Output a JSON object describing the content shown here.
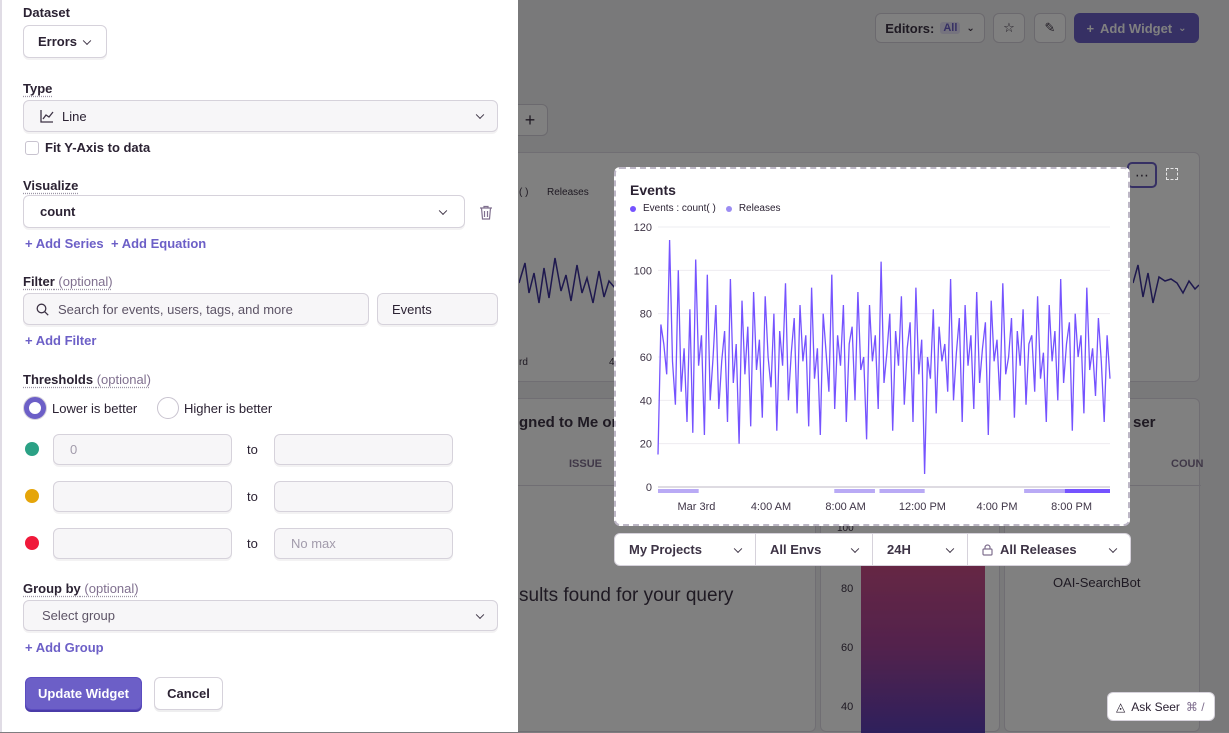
{
  "background": {
    "editors_label": "Editors:",
    "editors_value": "All",
    "add_widget_label": "Add Widget",
    "plus_label": "+",
    "legend_partial": "( )",
    "legend_releases": "Releases",
    "axis_partial_left": "rd",
    "axis_partial_4": "4",
    "assigned_title": "gned to Me or",
    "issue_col": "ISSUE",
    "no_results": "sults found for your query",
    "browser_title": "ser",
    "count_col": "COUN",
    "bot_row": "OAI-SearchBot",
    "y100": "100",
    "y80": "80",
    "y60": "60",
    "y40": "40",
    "ask_seer_label": "Ask Seer",
    "ask_seer_shortcut": "⌘ /"
  },
  "panel": {
    "dataset": {
      "label": "Dataset",
      "value": "Errors"
    },
    "type": {
      "label": "Type",
      "value": "Line"
    },
    "fit_y_axis": {
      "label": "Fit Y-Axis to data",
      "checked": false
    },
    "visualize": {
      "label": "Visualize",
      "value": "count",
      "add_series": "+ Add Series",
      "add_equation": "+ Add Equation"
    },
    "filter": {
      "label": "Filter",
      "optional": "(optional)",
      "placeholder": "Search for events, users, tags, and more",
      "events_value": "Events",
      "add_filter": "+ Add Filter"
    },
    "thresholds": {
      "label": "Thresholds",
      "optional": "(optional)",
      "lower": "Lower is better",
      "higher": "Higher is better",
      "selected": "lower",
      "rows": [
        {
          "color": "#2ba185",
          "min_placeholder": "0",
          "max_placeholder": ""
        },
        {
          "color": "#e5a50a",
          "min_placeholder": "",
          "max_placeholder": ""
        },
        {
          "color": "#f0193a",
          "min_placeholder": "",
          "max_placeholder": "No max"
        }
      ],
      "to": "to"
    },
    "group_by": {
      "label": "Group by",
      "optional": "(optional)",
      "placeholder": "Select group",
      "add_group": "+ Add Group"
    },
    "update_button": "Update Widget",
    "cancel_button": "Cancel"
  },
  "widget": {
    "title": "Events",
    "legend": [
      "Events : count( )",
      "Releases"
    ],
    "series_color": "#7553ff",
    "release_color": "#b9aaf5"
  },
  "filterbar": {
    "projects": "My Projects",
    "envs": "All Envs",
    "period": "24H",
    "releases": "All Releases"
  },
  "chart_data": {
    "type": "line",
    "title": "Events",
    "xlabel": "",
    "ylabel": "",
    "ylim": [
      0,
      120
    ],
    "yticks": [
      0,
      20,
      40,
      60,
      80,
      100,
      120
    ],
    "xtick_labels": [
      "Mar 3rd",
      "4:00 AM",
      "8:00 AM",
      "12:00 PM",
      "4:00 PM",
      "8:00 PM"
    ],
    "x_range_hours": [
      0,
      24
    ],
    "series": [
      {
        "name": "Events : count( )",
        "values": [
          15,
          75,
          66,
          52,
          114,
          58,
          38,
          100,
          44,
          64,
          30,
          82,
          25,
          105,
          56,
          70,
          24,
          98,
          40,
          60,
          84,
          36,
          58,
          72,
          30,
          96,
          48,
          66,
          20,
          86,
          52,
          74,
          28,
          90,
          54,
          68,
          32,
          88,
          60,
          46,
          80,
          26,
          72,
          56,
          94,
          40,
          62,
          78,
          34,
          84,
          58,
          70,
          28,
          92,
          50,
          64,
          24,
          80,
          62,
          44,
          98,
          36,
          70,
          56,
          84,
          30,
          66,
          74,
          40,
          90,
          54,
          60,
          22,
          84,
          58,
          70,
          36,
          104,
          48,
          62,
          80,
          26,
          72,
          56,
          88,
          38,
          64,
          76,
          30,
          92,
          52,
          68,
          6,
          60,
          50,
          82,
          34,
          74,
          58,
          66,
          44,
          96,
          40,
          62,
          78,
          30,
          84,
          56,
          70,
          36,
          90,
          48,
          64,
          76,
          24,
          86,
          58,
          68,
          40,
          94,
          52,
          60,
          78,
          32,
          72,
          56,
          82,
          38,
          66,
          70,
          44,
          88,
          50,
          62,
          30,
          84,
          58,
          72,
          40,
          96,
          48,
          66,
          76,
          26,
          80,
          60,
          70,
          34,
          92,
          54,
          64,
          42,
          78,
          58,
          30,
          70,
          50
        ]
      },
      {
        "name": "Releases",
        "values": []
      }
    ]
  }
}
